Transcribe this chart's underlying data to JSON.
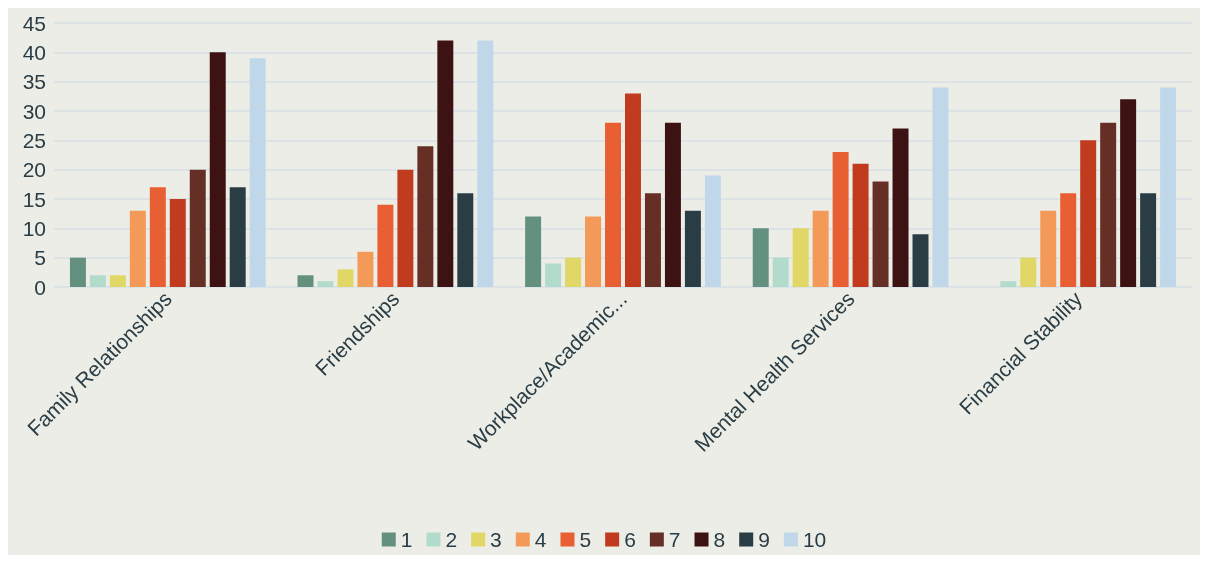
{
  "chart_data": {
    "type": "bar",
    "categories": [
      "Family Relationships",
      "Friendships",
      "Workplace/Academic...",
      "Mental Health Services",
      "Financial Stability"
    ],
    "series": [
      {
        "name": "1",
        "color": "#64917f",
        "values": [
          5,
          2,
          12,
          10,
          0
        ]
      },
      {
        "name": "2",
        "color": "#b3dbcc",
        "values": [
          2,
          1,
          4,
          5,
          1
        ]
      },
      {
        "name": "3",
        "color": "#e1d766",
        "values": [
          2,
          3,
          5,
          10,
          5
        ]
      },
      {
        "name": "4",
        "color": "#f49a58",
        "values": [
          13,
          6,
          12,
          13,
          13
        ]
      },
      {
        "name": "5",
        "color": "#e85f33",
        "values": [
          17,
          14,
          28,
          23,
          16
        ]
      },
      {
        "name": "6",
        "color": "#c13b1f",
        "values": [
          15,
          20,
          33,
          21,
          25
        ]
      },
      {
        "name": "7",
        "color": "#662f25",
        "values": [
          20,
          24,
          16,
          18,
          28
        ]
      },
      {
        "name": "8",
        "color": "#3c1213",
        "values": [
          40,
          42,
          28,
          27,
          32
        ]
      },
      {
        "name": "9",
        "color": "#2a3d45",
        "values": [
          17,
          16,
          13,
          9,
          16
        ]
      },
      {
        "name": "10",
        "color": "#c0d7ea",
        "values": [
          39,
          42,
          19,
          34,
          34
        ]
      }
    ],
    "ylim": [
      0,
      45
    ],
    "yticks": [
      0,
      5,
      10,
      15,
      20,
      25,
      30,
      35,
      40,
      45
    ],
    "grid": "y",
    "legend": "bottom"
  }
}
